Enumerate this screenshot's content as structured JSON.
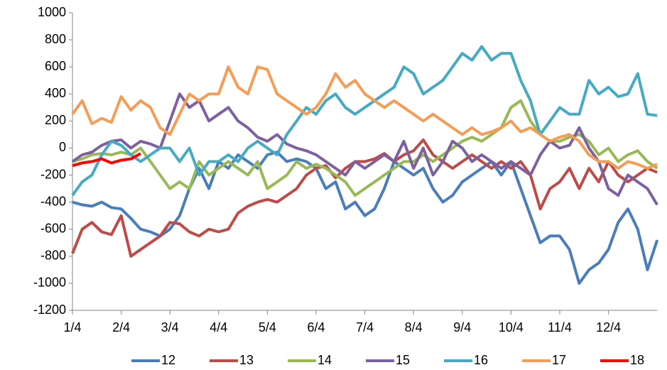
{
  "chart_data": {
    "type": "line",
    "categories": [
      "1/4",
      null,
      null,
      null,
      null,
      "2/4",
      null,
      null,
      null,
      null,
      "3/4",
      null,
      null,
      null,
      null,
      "4/4",
      null,
      null,
      null,
      null,
      "5/4",
      null,
      null,
      null,
      null,
      "6/4",
      null,
      null,
      null,
      null,
      "7/4",
      null,
      null,
      null,
      null,
      "8/4",
      null,
      null,
      null,
      null,
      "9/4",
      null,
      null,
      null,
      null,
      "10/4",
      null,
      null,
      null,
      null,
      "11/4",
      null,
      null,
      null,
      null,
      "12/4",
      null,
      null,
      null,
      null,
      null
    ],
    "series": [
      {
        "name": "12",
        "color": "#4a7ebb",
        "values": [
          -400,
          -420,
          -430,
          -400,
          -440,
          -450,
          -520,
          -600,
          -620,
          -650,
          -600,
          -500,
          -300,
          -150,
          -300,
          -100,
          -150,
          -50,
          -100,
          -150,
          -50,
          -30,
          -100,
          -80,
          -100,
          -150,
          -300,
          -250,
          -450,
          -400,
          -500,
          -450,
          -300,
          -100,
          -150,
          -200,
          -150,
          -300,
          -400,
          -350,
          -250,
          -200,
          -150,
          -100,
          -200,
          -100,
          -300,
          -500,
          -700,
          -650,
          -650,
          -750,
          -1000,
          -900,
          -850,
          -750,
          -550,
          -450,
          -600,
          -900,
          -680
        ]
      },
      {
        "name": "13",
        "color": "#be4b48",
        "values": [
          -780,
          -600,
          -550,
          -620,
          -640,
          -500,
          -800,
          -750,
          -700,
          -650,
          -550,
          -560,
          -620,
          -650,
          -600,
          -620,
          -600,
          -480,
          -430,
          -400,
          -380,
          -400,
          -350,
          -300,
          -200,
          -150,
          -130,
          -220,
          -150,
          -100,
          -100,
          -80,
          -40,
          -100,
          -50,
          -20,
          60,
          -50,
          -100,
          -150,
          -100,
          -50,
          -100,
          -150,
          -100,
          -150,
          -100,
          -200,
          -450,
          -300,
          -250,
          -150,
          -300,
          -150,
          -250,
          -100,
          -200,
          -250,
          -200,
          -150,
          -180
        ]
      },
      {
        "name": "14",
        "color": "#98b954",
        "values": [
          -100,
          -80,
          -50,
          -40,
          -50,
          -30,
          -50,
          0,
          -100,
          -200,
          -300,
          -250,
          -300,
          -100,
          -200,
          -150,
          -100,
          -150,
          -200,
          -100,
          -300,
          -250,
          -200,
          -100,
          -150,
          -120,
          -150,
          -200,
          -250,
          -350,
          -300,
          -250,
          -200,
          -150,
          -100,
          -100,
          -50,
          -100,
          -50,
          0,
          50,
          80,
          50,
          100,
          150,
          300,
          350,
          200,
          100,
          50,
          50,
          80,
          100,
          50,
          -50,
          0,
          -100,
          -50,
          -20,
          -100,
          -150
        ]
      },
      {
        "name": "15",
        "color": "#7d60a0",
        "values": [
          -100,
          -50,
          -30,
          20,
          50,
          60,
          0,
          50,
          30,
          0,
          200,
          400,
          300,
          350,
          200,
          250,
          300,
          200,
          150,
          80,
          50,
          100,
          30,
          0,
          -20,
          -50,
          -100,
          -150,
          -200,
          -100,
          -150,
          -100,
          -50,
          -100,
          50,
          -150,
          0,
          -200,
          -100,
          50,
          0,
          -100,
          -50,
          -100,
          -150,
          -100,
          -150,
          -200,
          -50,
          50,
          0,
          20,
          150,
          0,
          -100,
          -300,
          -350,
          -200,
          -250,
          -300,
          -420
        ]
      },
      {
        "name": "16",
        "color": "#46aac5",
        "values": [
          -350,
          -250,
          -200,
          -50,
          50,
          20,
          -50,
          -100,
          -50,
          0,
          0,
          -100,
          0,
          -200,
          -100,
          -100,
          -50,
          -100,
          0,
          50,
          0,
          -50,
          100,
          200,
          300,
          250,
          350,
          400,
          300,
          250,
          300,
          350,
          400,
          450,
          600,
          550,
          400,
          450,
          500,
          600,
          700,
          650,
          750,
          650,
          700,
          700,
          500,
          350,
          100,
          200,
          300,
          250,
          250,
          500,
          400,
          450,
          380,
          400,
          550,
          250,
          240
        ]
      },
      {
        "name": "17",
        "color": "#f59d56",
        "values": [
          250,
          350,
          180,
          220,
          190,
          380,
          280,
          350,
          300,
          150,
          100,
          250,
          400,
          350,
          400,
          400,
          600,
          450,
          400,
          600,
          580,
          400,
          350,
          300,
          250,
          300,
          400,
          550,
          450,
          500,
          400,
          350,
          300,
          350,
          300,
          250,
          200,
          250,
          200,
          150,
          100,
          150,
          100,
          120,
          150,
          200,
          120,
          150,
          100,
          50,
          80,
          100,
          50,
          -50,
          -100,
          -100,
          -150,
          -100,
          -120,
          -150,
          -120
        ]
      },
      {
        "name": "18",
        "color": "#ff0000",
        "values": [
          -130,
          -110,
          -100,
          -80,
          -110,
          -90,
          -80,
          -40,
          null,
          null,
          null,
          null,
          null,
          null,
          null,
          null,
          null,
          null,
          null,
          null,
          null,
          null,
          null,
          null,
          null,
          null,
          null,
          null,
          null,
          null,
          null,
          null,
          null,
          null,
          null,
          null,
          null,
          null,
          null,
          null,
          null,
          null,
          null,
          null,
          null,
          null,
          null,
          null,
          null,
          null,
          null,
          null,
          null,
          null,
          null,
          null,
          null,
          null,
          null,
          null,
          null
        ]
      }
    ],
    "ylim": [
      -1200,
      1000
    ],
    "yticks": [
      -1200,
      -1000,
      -800,
      -600,
      -400,
      -200,
      0,
      200,
      400,
      600,
      800,
      1000
    ],
    "grid": false
  }
}
